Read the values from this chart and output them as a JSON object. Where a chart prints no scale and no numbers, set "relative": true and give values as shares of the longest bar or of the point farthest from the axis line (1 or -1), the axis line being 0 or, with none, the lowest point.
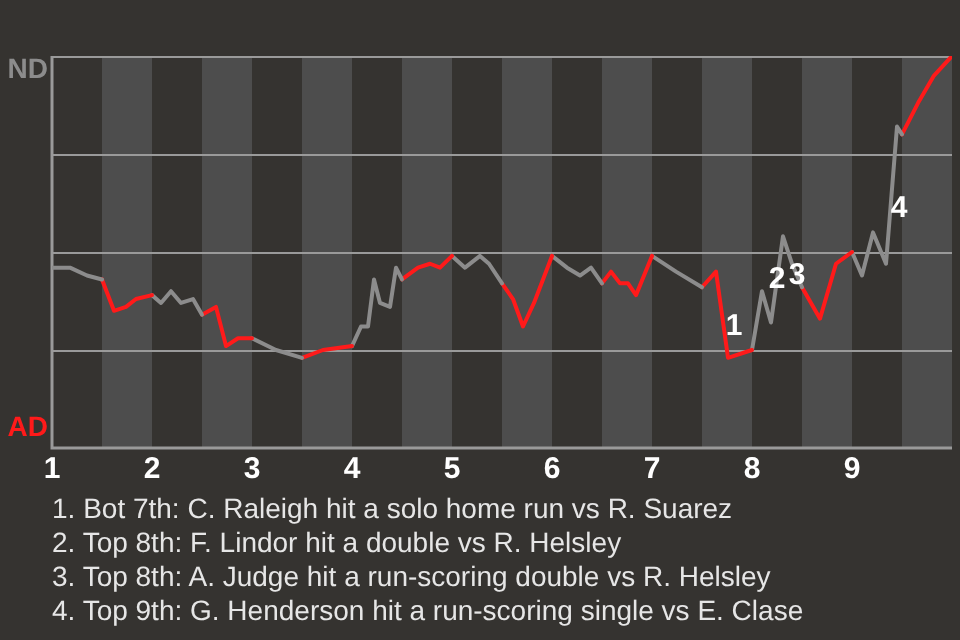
{
  "chart_data": {
    "type": "line",
    "relative": true,
    "grid": "y",
    "xlim": [
      1,
      10
    ],
    "xticks": [
      1,
      2,
      3,
      4,
      5,
      6,
      7,
      8,
      9
    ],
    "series": [
      {
        "color": "#8c8c8c",
        "x": [
          1.0,
          1.18,
          1.35,
          1.5
        ],
        "values": [
          0.46,
          0.46,
          0.44,
          0.43
        ]
      },
      {
        "color": "#ff1a1a",
        "x": [
          1.5,
          1.62,
          1.74,
          1.84,
          2.0
        ],
        "values": [
          0.43,
          0.35,
          0.36,
          0.38,
          0.39
        ]
      },
      {
        "color": "#8c8c8c",
        "x": [
          2.0,
          2.09,
          2.19,
          2.29,
          2.41,
          2.5
        ],
        "values": [
          0.39,
          0.37,
          0.4,
          0.37,
          0.38,
          0.34
        ]
      },
      {
        "color": "#ff1a1a",
        "x": [
          2.5,
          2.64,
          2.74,
          2.86,
          3.0
        ],
        "values": [
          0.34,
          0.36,
          0.26,
          0.28,
          0.28
        ]
      },
      {
        "color": "#8c8c8c",
        "x": [
          3.0,
          3.24,
          3.5
        ],
        "values": [
          0.28,
          0.25,
          0.23
        ]
      },
      {
        "color": "#ff1a1a",
        "x": [
          3.5,
          3.71,
          4.0
        ],
        "values": [
          0.23,
          0.25,
          0.26
        ]
      },
      {
        "color": "#8c8c8c",
        "x": [
          4.0,
          4.09,
          4.16,
          4.22,
          4.28,
          4.38,
          4.44,
          4.5
        ],
        "values": [
          0.26,
          0.31,
          0.31,
          0.43,
          0.37,
          0.36,
          0.46,
          0.43
        ]
      },
      {
        "color": "#ff1a1a",
        "x": [
          4.5,
          4.66,
          4.78,
          4.88,
          5.0
        ],
        "values": [
          0.43,
          0.46,
          0.47,
          0.46,
          0.49
        ]
      },
      {
        "color": "#8c8c8c",
        "x": [
          5.0,
          5.13,
          5.28,
          5.37,
          5.5
        ],
        "values": [
          0.49,
          0.46,
          0.49,
          0.47,
          0.42
        ]
      },
      {
        "color": "#ff1a1a",
        "x": [
          5.5,
          5.61,
          5.71,
          5.82,
          6.0
        ],
        "values": [
          0.42,
          0.38,
          0.31,
          0.37,
          0.49
        ]
      },
      {
        "color": "#8c8c8c",
        "x": [
          6.0,
          6.15,
          6.28,
          6.39,
          6.5
        ],
        "values": [
          0.49,
          0.46,
          0.44,
          0.46,
          0.42
        ]
      },
      {
        "color": "#ff1a1a",
        "x": [
          6.5,
          6.59,
          6.68,
          6.76,
          6.84,
          7.0
        ],
        "values": [
          0.42,
          0.45,
          0.42,
          0.42,
          0.39,
          0.49
        ]
      },
      {
        "color": "#8c8c8c",
        "x": [
          7.0,
          7.24,
          7.5
        ],
        "values": [
          0.49,
          0.45,
          0.41
        ]
      },
      {
        "color": "#ff1a1a",
        "x": [
          7.5,
          7.64,
          7.76,
          8.0
        ],
        "values": [
          0.41,
          0.45,
          0.23,
          0.25
        ]
      },
      {
        "color": "#8c8c8c",
        "x": [
          8.0,
          8.1,
          8.19,
          8.31,
          8.4,
          8.5
        ],
        "values": [
          0.25,
          0.4,
          0.32,
          0.54,
          0.47,
          0.41
        ]
      },
      {
        "color": "#ff1a1a",
        "x": [
          8.5,
          8.68,
          8.84,
          9.0
        ],
        "values": [
          0.41,
          0.33,
          0.47,
          0.5
        ]
      },
      {
        "color": "#8c8c8c",
        "x": [
          9.0,
          9.1,
          9.21,
          9.34,
          9.45,
          9.5
        ],
        "values": [
          0.5,
          0.44,
          0.55,
          0.47,
          0.82,
          0.8
        ]
      },
      {
        "color": "#ff1a1a",
        "x": [
          9.5,
          9.66,
          9.82,
          10.0
        ],
        "values": [
          0.8,
          0.88,
          0.95,
          1
        ]
      }
    ],
    "bands": [
      {
        "axis": "x",
        "from": 1.5,
        "to": 2,
        "color": "#4d4d4d"
      },
      {
        "axis": "x",
        "from": 2.5,
        "to": 3,
        "color": "#4d4d4d"
      },
      {
        "axis": "x",
        "from": 3.5,
        "to": 4,
        "color": "#4d4d4d"
      },
      {
        "axis": "x",
        "from": 4.5,
        "to": 5,
        "color": "#4d4d4d"
      },
      {
        "axis": "x",
        "from": 5.5,
        "to": 6,
        "color": "#4d4d4d"
      },
      {
        "axis": "x",
        "from": 6.5,
        "to": 7,
        "color": "#4d4d4d"
      },
      {
        "axis": "x",
        "from": 7.5,
        "to": 8,
        "color": "#4d4d4d"
      },
      {
        "axis": "x",
        "from": 8.5,
        "to": 9,
        "color": "#4d4d4d"
      },
      {
        "axis": "x",
        "from": 9.5,
        "to": 10,
        "color": "#4d4d4d"
      }
    ],
    "annotations": [
      "ND",
      "AD",
      {
        "text": "1",
        "x": 7.82,
        "y": 0.31
      },
      {
        "text": "2",
        "x": 8.25,
        "y": 0.43
      },
      {
        "text": "3",
        "x": 8.45,
        "y": 0.44
      },
      {
        "text": "4",
        "x": 9.47,
        "y": 0.61
      },
      "1. Bot 7th: C. Raleigh hit a solo home run vs R. Suarez",
      "2. Top 8th: F. Lindor hit a double vs R. Helsley",
      "3. Top 8th: A. Judge hit a run-scoring double vs R. Helsley",
      "4. Top 9th: G. Henderson hit a run-scoring single vs E. Clase"
    ]
  }
}
